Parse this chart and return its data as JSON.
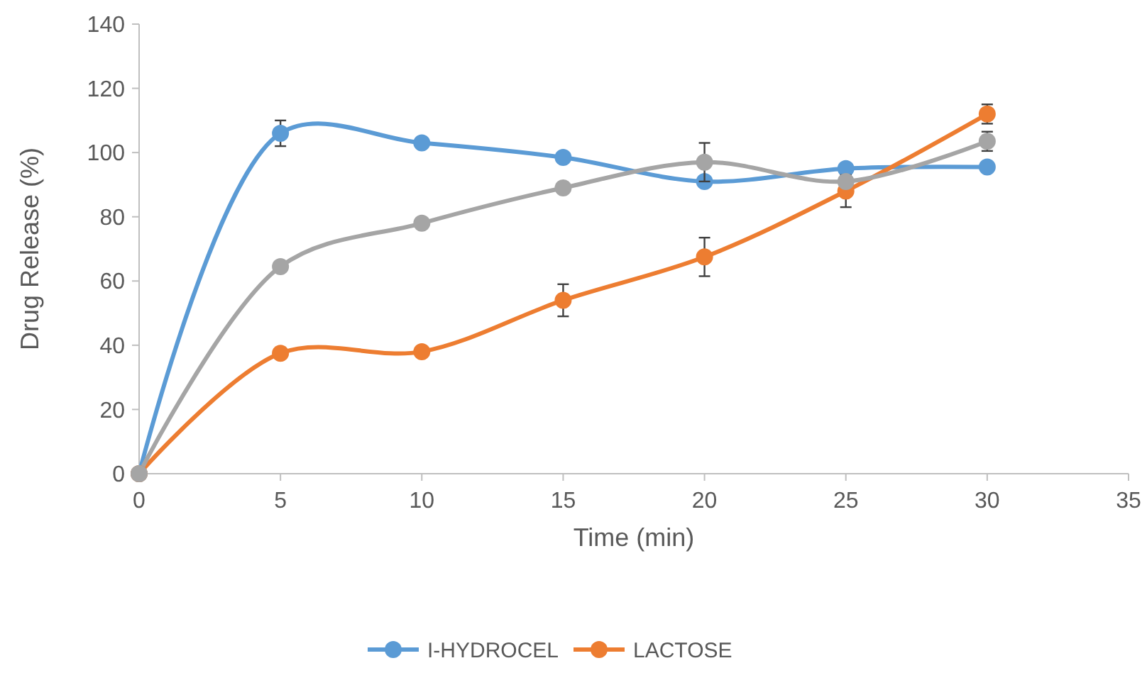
{
  "chart_data": {
    "type": "line",
    "xlabel": "Time (min)",
    "ylabel": "Drug Release (%)",
    "x": [
      0,
      5,
      10,
      15,
      20,
      25,
      30
    ],
    "xlim": [
      0,
      35
    ],
    "xticks": [
      0,
      5,
      10,
      15,
      20,
      25,
      30,
      35
    ],
    "ylim": [
      0,
      140
    ],
    "yticks": [
      0,
      20,
      40,
      60,
      80,
      100,
      120,
      140
    ],
    "grid": false,
    "legend": "bottom",
    "marker": "circle",
    "line_style": "solid",
    "series": [
      {
        "name": "I-HYDROCEL",
        "color": "#5b9bd5",
        "values": [
          0,
          106,
          103,
          98.5,
          91,
          95,
          95.5
        ],
        "errors": [
          null,
          4,
          null,
          null,
          null,
          null,
          null
        ]
      },
      {
        "name": "LACTOSE",
        "color": "#ed7d31",
        "values": [
          0,
          37.5,
          38,
          54,
          67.5,
          88,
          112
        ],
        "errors": [
          null,
          null,
          null,
          5,
          6,
          5,
          3
        ]
      },
      {
        "color": "#a5a5a5",
        "values": [
          0,
          64.5,
          78,
          89,
          97,
          91,
          103.5
        ],
        "errors": [
          null,
          null,
          null,
          null,
          6,
          null,
          3
        ]
      }
    ]
  }
}
